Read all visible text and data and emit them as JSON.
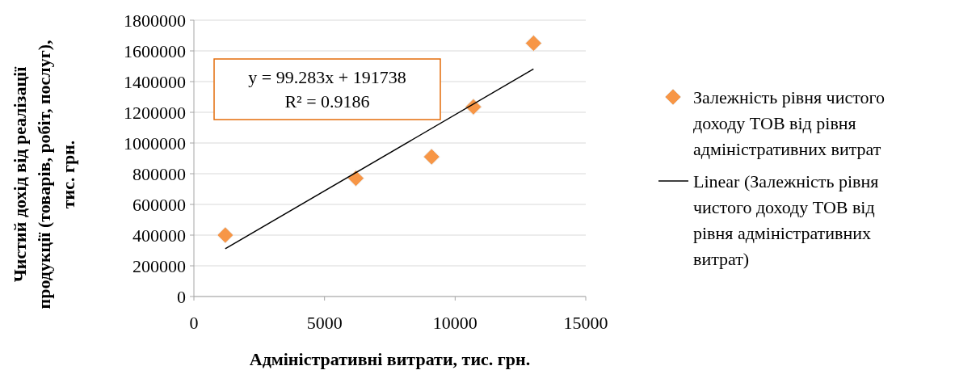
{
  "chart_data": {
    "type": "scatter",
    "xlabel": "Адміністративні витрати, тис. грн.",
    "ylabel": "Чистий дохід від реалізації\nпродукції (товарів, робіт, послуг),\nтис. грн.",
    "xlim": [
      0,
      15000
    ],
    "xticks": [
      0,
      5000,
      10000,
      15000
    ],
    "ylim": [
      0,
      1800000
    ],
    "yticks": [
      0,
      200000,
      400000,
      600000,
      800000,
      1000000,
      1200000,
      1400000,
      1600000,
      1800000
    ],
    "grid": "y",
    "legend": "right",
    "annotations": [
      "y = 99.283x + 191738",
      "R² = 0.9186"
    ],
    "series": [
      {
        "name": "Залежність рівня чистого доходу ТОВ від рівня адміністративних витрат",
        "marker": "diamond",
        "color": "#f79646",
        "x": [
          1200,
          6200,
          9100,
          10700,
          13000
        ],
        "values": [
          400000,
          770000,
          910000,
          1235000,
          1650000
        ]
      },
      {
        "name": "Linear (Залежність рівня чистого доходу ТОВ від рівня адміністративних витрат)",
        "type": "line",
        "color": "#000000",
        "x": [
          1200,
          13000
        ],
        "values": [
          311000,
          1482000
        ],
        "line_style": "solid",
        "marker": "none"
      }
    ]
  }
}
